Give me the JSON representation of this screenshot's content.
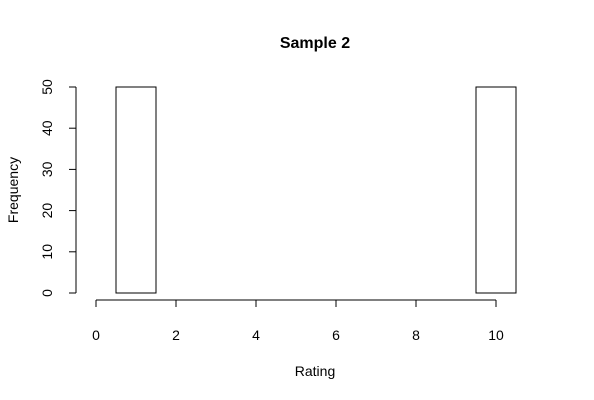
{
  "chart_data": {
    "type": "bar",
    "title": "Sample 2",
    "xlabel": "Rating",
    "ylabel": "Frequency",
    "xlim": [
      0,
      10
    ],
    "ylim": [
      0,
      50
    ],
    "x_ticks": [
      0,
      2,
      4,
      6,
      8,
      10
    ],
    "y_ticks": [
      0,
      10,
      20,
      30,
      40,
      50
    ],
    "grid": false,
    "bars": [
      {
        "x_start": 0.5,
        "x_end": 1.5,
        "value": 50
      },
      {
        "x_start": 1.5,
        "x_end": 9.5,
        "value": 0
      },
      {
        "x_start": 9.5,
        "x_end": 10.5,
        "value": 50
      }
    ]
  }
}
